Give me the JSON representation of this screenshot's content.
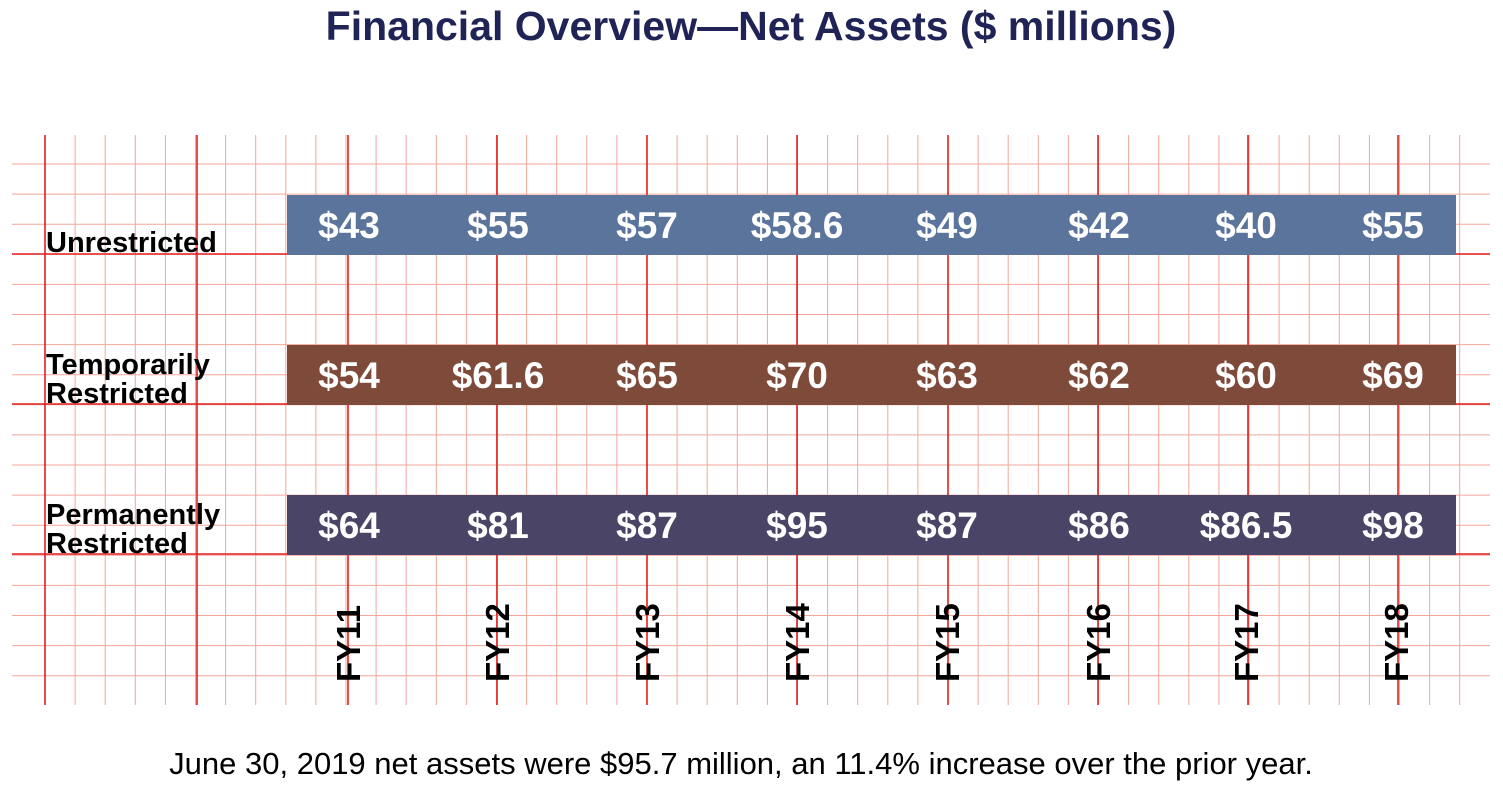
{
  "chart_data": {
    "type": "table",
    "title": "Financial Overview—Net Assets ($ millions)",
    "categories": [
      "FY11",
      "FY12",
      "FY13",
      "FY14",
      "FY15",
      "FY16",
      "FY17",
      "FY18"
    ],
    "series": [
      {
        "name": "Unrestricted",
        "label_lines": [
          "Unrestricted"
        ],
        "color": "#5b749c",
        "values": [
          43,
          55,
          57,
          58.6,
          49,
          42,
          40,
          55
        ],
        "display": [
          "$43",
          "$55",
          "$57",
          "$58.6",
          "$49",
          "$42",
          "$40",
          "$55"
        ]
      },
      {
        "name": "Temporarily Restricted",
        "label_lines": [
          "Temporarily",
          "Restricted"
        ],
        "color": "#7e4b3b",
        "values": [
          54,
          61.6,
          65,
          70,
          63,
          62,
          60,
          69
        ],
        "display": [
          "$54",
          "$61.6",
          "$65",
          "$70",
          "$63",
          "$62",
          "$60",
          "$69"
        ]
      },
      {
        "name": "Permanently Restricted",
        "label_lines": [
          "Permanently",
          "Restricted"
        ],
        "color": "#4a4566",
        "values": [
          64,
          81,
          87,
          95,
          87,
          86,
          86.5,
          98
        ],
        "display": [
          "$64",
          "$81",
          "$87",
          "$95",
          "$87",
          "$86",
          "$86.5",
          "$98"
        ]
      }
    ],
    "grid": true,
    "footnote": "June 30, 2019 net assets were $95.7 million, an 11.4% increase over the prior year."
  },
  "colors": {
    "title": "#1f2355",
    "grid_minor": "#f2a79a",
    "grid_major": "#e02020"
  }
}
